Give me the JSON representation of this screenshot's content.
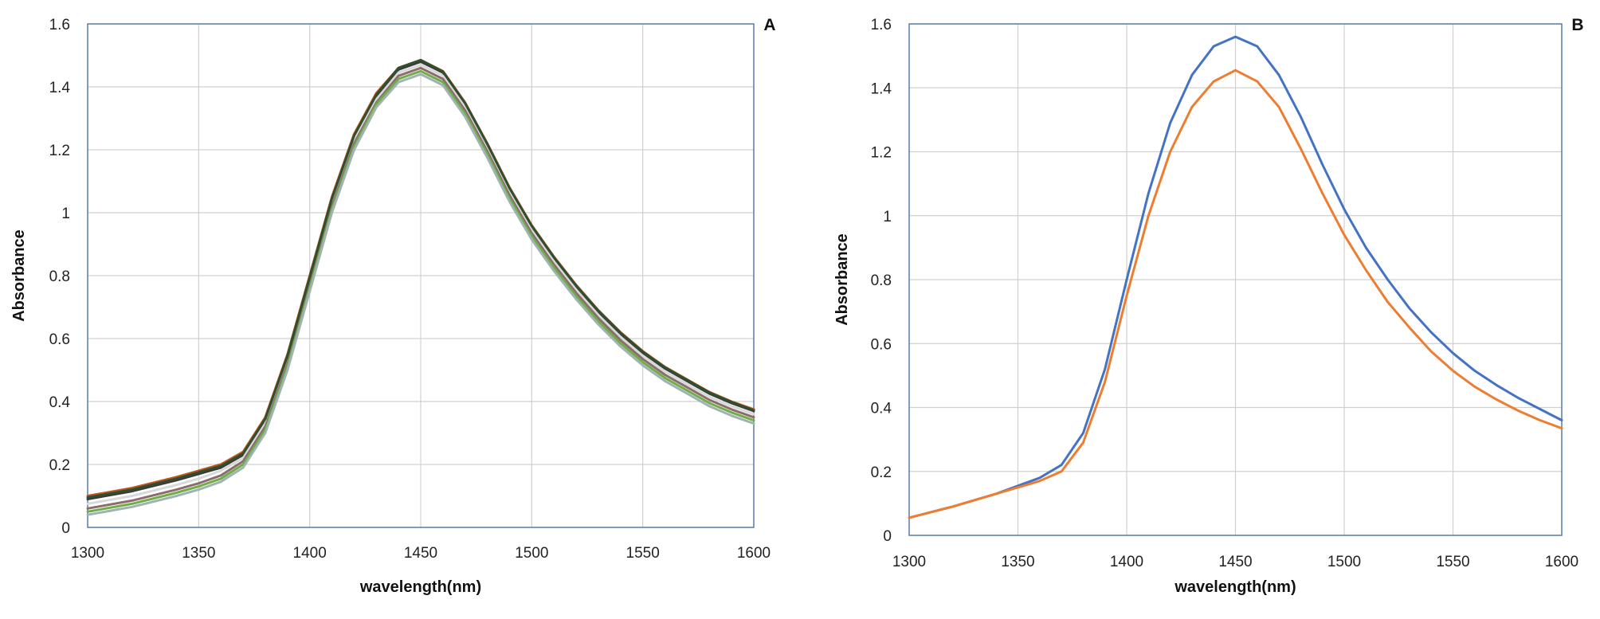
{
  "chart_data": [
    {
      "panel": "A",
      "type": "line",
      "xlabel": "wavelength(nm)",
      "ylabel": "Absorbance",
      "xlim": [
        1300,
        1600
      ],
      "ylim": [
        0,
        1.6
      ],
      "xticks": [
        "1300",
        "1350",
        "1400",
        "1450",
        "1500",
        "1550",
        "1600"
      ],
      "yticks": [
        "0",
        "0.2",
        "0.4",
        "0.6",
        "0.8",
        "1",
        "1.2",
        "1.4",
        "1.6"
      ],
      "grid": true,
      "legend": "none",
      "x": [
        1300,
        1320,
        1340,
        1350,
        1360,
        1370,
        1380,
        1390,
        1400,
        1410,
        1420,
        1430,
        1440,
        1450,
        1460,
        1470,
        1480,
        1490,
        1500,
        1510,
        1520,
        1530,
        1540,
        1550,
        1560,
        1570,
        1580,
        1590,
        1600
      ],
      "series": [
        {
          "color": "#c0551f",
          "values": [
            0.1,
            0.125,
            0.16,
            0.18,
            0.2,
            0.24,
            0.35,
            0.55,
            0.8,
            1.05,
            1.25,
            1.38,
            1.46,
            1.485,
            1.45,
            1.35,
            1.22,
            1.08,
            0.96,
            0.86,
            0.77,
            0.69,
            0.62,
            0.56,
            0.51,
            0.47,
            0.43,
            0.4,
            0.375
          ]
        },
        {
          "color": "#3a3a3a",
          "values": [
            0.09,
            0.115,
            0.15,
            0.17,
            0.19,
            0.23,
            0.34,
            0.54,
            0.79,
            1.04,
            1.24,
            1.37,
            1.455,
            1.48,
            1.445,
            1.345,
            1.215,
            1.075,
            0.955,
            0.855,
            0.765,
            0.685,
            0.615,
            0.555,
            0.505,
            0.465,
            0.425,
            0.395,
            0.37
          ]
        },
        {
          "color": "#d9d9d9",
          "values": [
            0.075,
            0.1,
            0.135,
            0.155,
            0.18,
            0.22,
            0.33,
            0.53,
            0.78,
            1.03,
            1.23,
            1.36,
            1.445,
            1.47,
            1.435,
            1.335,
            1.205,
            1.065,
            0.945,
            0.845,
            0.755,
            0.675,
            0.605,
            0.545,
            0.495,
            0.455,
            0.415,
            0.385,
            0.36
          ]
        },
        {
          "color": "#8c6d6d",
          "values": [
            0.06,
            0.085,
            0.12,
            0.14,
            0.165,
            0.21,
            0.32,
            0.52,
            0.77,
            1.02,
            1.22,
            1.35,
            1.435,
            1.46,
            1.425,
            1.325,
            1.195,
            1.055,
            0.935,
            0.835,
            0.745,
            0.665,
            0.595,
            0.535,
            0.485,
            0.445,
            0.405,
            0.375,
            0.35
          ]
        },
        {
          "color": "#70ad47",
          "values": [
            0.05,
            0.075,
            0.11,
            0.13,
            0.155,
            0.2,
            0.31,
            0.51,
            0.76,
            1.01,
            1.21,
            1.345,
            1.425,
            1.45,
            1.415,
            1.315,
            1.185,
            1.045,
            0.925,
            0.825,
            0.735,
            0.655,
            0.585,
            0.525,
            0.475,
            0.435,
            0.395,
            0.365,
            0.34
          ]
        },
        {
          "color": "#9fb3b3",
          "values": [
            0.04,
            0.065,
            0.1,
            0.12,
            0.145,
            0.19,
            0.3,
            0.5,
            0.75,
            1.0,
            1.2,
            1.335,
            1.415,
            1.44,
            1.405,
            1.305,
            1.175,
            1.035,
            0.915,
            0.815,
            0.725,
            0.645,
            0.575,
            0.515,
            0.465,
            0.425,
            0.385,
            0.355,
            0.33
          ]
        },
        {
          "color": "#2f4f2f",
          "values": [
            0.095,
            0.12,
            0.155,
            0.175,
            0.195,
            0.235,
            0.345,
            0.545,
            0.795,
            1.045,
            1.245,
            1.375,
            1.46,
            1.485,
            1.448,
            1.348,
            1.218,
            1.078,
            0.958,
            0.858,
            0.768,
            0.688,
            0.618,
            0.558,
            0.508,
            0.468,
            0.428,
            0.398,
            0.372
          ]
        }
      ]
    },
    {
      "panel": "B",
      "type": "line",
      "xlabel": "wavelength(nm)",
      "ylabel": "Absorbance",
      "xlim": [
        1300,
        1600
      ],
      "ylim": [
        0,
        1.6
      ],
      "xticks": [
        "1300",
        "1350",
        "1400",
        "1450",
        "1500",
        "1550",
        "1600"
      ],
      "yticks": [
        "0",
        "0.2",
        "0.4",
        "0.6",
        "0.8",
        "1",
        "1.2",
        "1.4",
        "1.6"
      ],
      "grid": true,
      "legend": "none",
      "x": [
        1300,
        1320,
        1340,
        1350,
        1360,
        1370,
        1380,
        1390,
        1400,
        1410,
        1420,
        1430,
        1440,
        1450,
        1460,
        1470,
        1480,
        1490,
        1500,
        1510,
        1520,
        1530,
        1540,
        1550,
        1560,
        1570,
        1580,
        1590,
        1600
      ],
      "series": [
        {
          "color": "#4472c4",
          "values": [
            0.055,
            0.09,
            0.13,
            0.155,
            0.18,
            0.22,
            0.32,
            0.52,
            0.8,
            1.07,
            1.29,
            1.44,
            1.53,
            1.56,
            1.53,
            1.44,
            1.31,
            1.16,
            1.02,
            0.9,
            0.8,
            0.71,
            0.635,
            0.57,
            0.515,
            0.47,
            0.43,
            0.395,
            0.36
          ]
        },
        {
          "color": "#ed7d31",
          "values": [
            0.055,
            0.09,
            0.13,
            0.15,
            0.17,
            0.2,
            0.29,
            0.48,
            0.75,
            1.0,
            1.2,
            1.34,
            1.42,
            1.455,
            1.42,
            1.34,
            1.21,
            1.07,
            0.94,
            0.83,
            0.73,
            0.65,
            0.575,
            0.515,
            0.465,
            0.425,
            0.39,
            0.36,
            0.335
          ]
        }
      ]
    }
  ]
}
